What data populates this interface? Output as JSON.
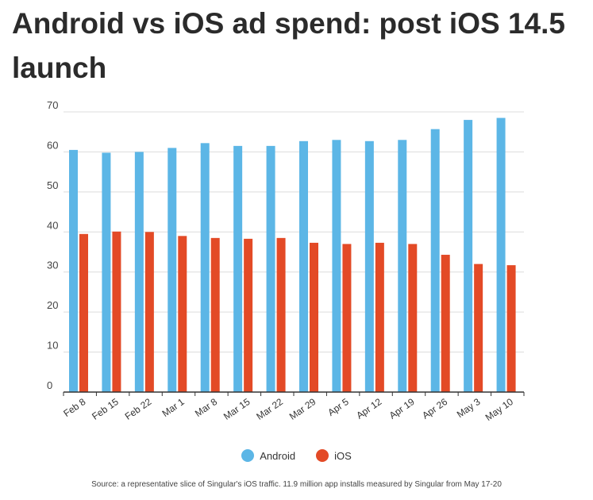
{
  "chart_data": {
    "type": "bar",
    "title": "Android vs iOS ad spend: post iOS 14.5 launch",
    "categories": [
      "Feb 8",
      "Feb 15",
      "Feb 22",
      "Mar 1",
      "Mar 8",
      "Mar 15",
      "Mar 22",
      "Mar 29",
      "Apr 5",
      "Apr 12",
      "Apr 19",
      "Apr 26",
      "May 3",
      "May 10"
    ],
    "series": [
      {
        "name": "Android",
        "color": "#5cb6e6",
        "values": [
          60.5,
          59.8,
          60,
          61,
          62.2,
          61.5,
          61.5,
          62.7,
          63,
          62.7,
          63,
          65.7,
          68,
          68.5
        ]
      },
      {
        "name": "iOS",
        "color": "#e34a26",
        "values": [
          39.5,
          40.1,
          40,
          39,
          38.5,
          38.3,
          38.5,
          37.3,
          37,
          37.3,
          37,
          34.3,
          32,
          31.7
        ]
      }
    ],
    "ylim": [
      0,
      70
    ],
    "yticks": [
      0,
      10,
      20,
      30,
      40,
      50,
      60,
      70
    ],
    "grid": true,
    "legend_position": "bottom-center",
    "source": "Source: a representative slice of Singular's iOS traffic. 11.9 million app installs measured by Singular from May 17-20"
  }
}
